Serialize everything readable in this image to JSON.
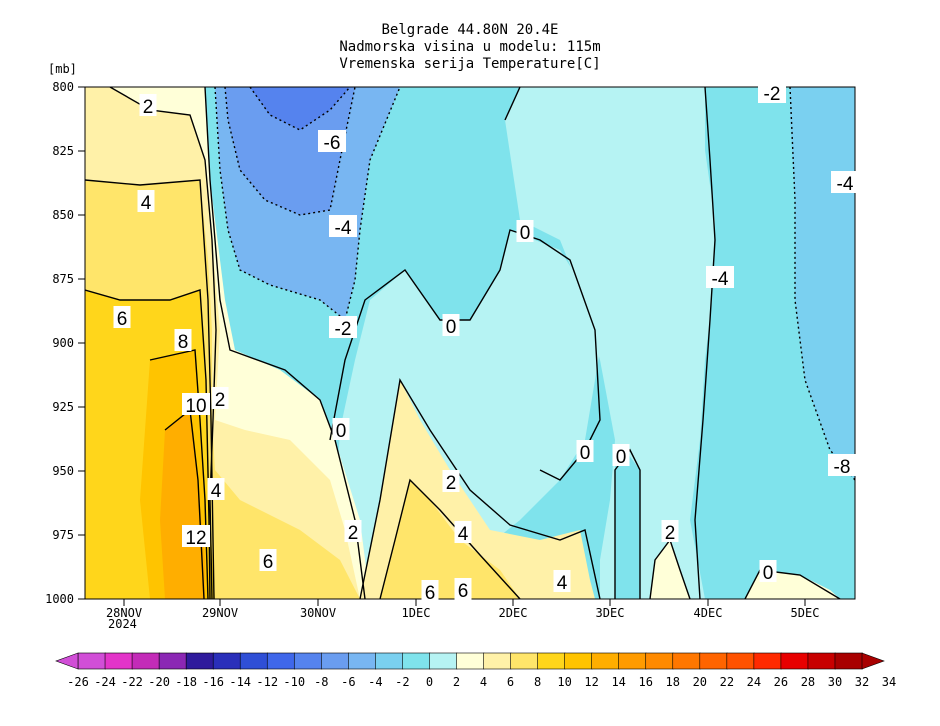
{
  "title_lines": [
    "Belgrade  44.80N 20.4E",
    "Nadmorska visina u modelu: 115m",
    "Vremenska serija Temperature[C]"
  ],
  "chart_data": {
    "type": "heatmap",
    "y_unit_label": "[mb]",
    "y_ticks": [
      "800",
      "825",
      "850",
      "875",
      "900",
      "925",
      "950",
      "975",
      "1000"
    ],
    "y_range": [
      800,
      1000
    ],
    "x_ticks": [
      "28NOV",
      "29NOV",
      "30NOV",
      "1DEC",
      "2DEC",
      "3DEC",
      "4DEC",
      "5DEC"
    ],
    "x_tick_sub": "2024",
    "colorbar_ticks": [
      "-26",
      "-24",
      "-22",
      "-20",
      "-18",
      "-16",
      "-14",
      "-12",
      "-10",
      "-8",
      "-6",
      "-4",
      "-2",
      "0",
      "2",
      "4",
      "6",
      "8",
      "10",
      "12",
      "14",
      "16",
      "18",
      "20",
      "22",
      "24",
      "26",
      "28",
      "30",
      "32",
      "34"
    ],
    "colorbar_colors": [
      "#d14ed7",
      "#e334c9",
      "#c32bb8",
      "#8b27b4",
      "#2f1b9c",
      "#2a2fba",
      "#2f4fd6",
      "#3f67ea",
      "#5583ee",
      "#6a9df0",
      "#78b6f2",
      "#7ad0f0",
      "#7fe3ec",
      "#b6f3f3",
      "#ffffd8",
      "#fff1a8",
      "#ffe56a",
      "#ffd61b",
      "#ffc400",
      "#ffae00",
      "#ff9b00",
      "#ff8a00",
      "#ff7700",
      "#ff6400",
      "#ff5200",
      "#ff2a00",
      "#e80000",
      "#c80000",
      "#a80000"
    ],
    "contour_labels": [
      "2",
      "4",
      "6",
      "8",
      "10",
      "12",
      "-6",
      "-4",
      "-2",
      "0",
      "0",
      "0",
      "0",
      "0",
      "-2",
      "-4",
      "-4",
      "2",
      "2",
      "2",
      "4",
      "4",
      "4",
      "6",
      "6",
      "6",
      "2",
      "0",
      "-8"
    ]
  }
}
